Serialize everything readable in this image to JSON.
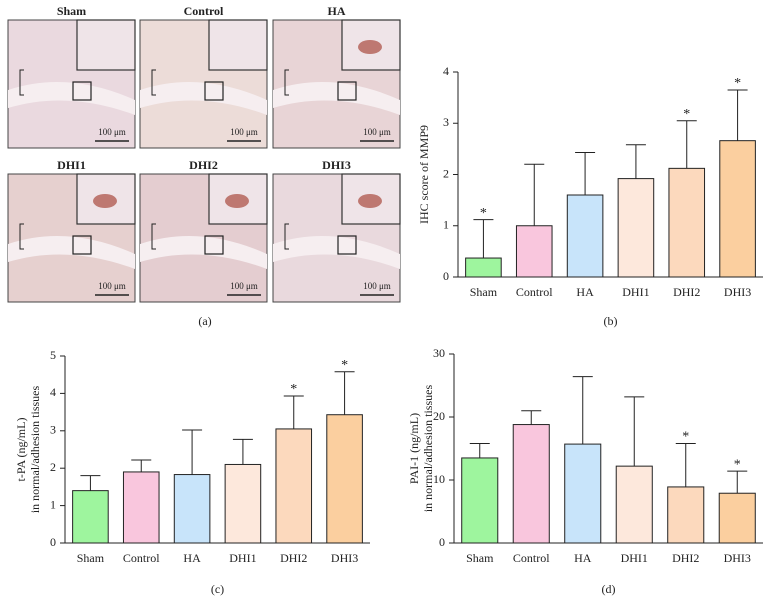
{
  "panel_a": {
    "labels": [
      "Sham",
      "Control",
      "HA",
      "DHI1",
      "DHI2",
      "DHI3"
    ],
    "scale_bar": "100 μm",
    "caption": "(a)"
  },
  "chart_data": [
    {
      "type": "bar",
      "caption": "(b)",
      "ylabel": [
        "IHC score of MMP9"
      ],
      "categories": [
        "Sham",
        "Control",
        "HA",
        "DHI1",
        "DHI2",
        "DHI3"
      ],
      "values": [
        0.37,
        1.0,
        1.6,
        1.92,
        2.12,
        2.66
      ],
      "errors": [
        0.75,
        1.2,
        0.83,
        0.66,
        0.93,
        0.99
      ],
      "markers": [
        "*",
        null,
        null,
        null,
        "*",
        "*"
      ],
      "colors": [
        "#9ef59e",
        "#f9c6dd",
        "#c8e4fa",
        "#fde8dc",
        "#fcd9bd",
        "#fbcf9f"
      ],
      "ylim": [
        0,
        4
      ],
      "yticks": [
        0,
        1,
        2,
        3,
        4
      ]
    },
    {
      "type": "bar",
      "caption": "(c)",
      "ylabel": [
        "t-PA (ng/mL)",
        "in normal/adhesion tissues"
      ],
      "categories": [
        "Sham",
        "Control",
        "HA",
        "DHI1",
        "DHI2",
        "DHI3"
      ],
      "values": [
        1.4,
        1.9,
        1.83,
        2.1,
        3.05,
        3.43
      ],
      "errors": [
        0.4,
        0.32,
        1.19,
        0.67,
        0.88,
        1.15
      ],
      "markers": [
        null,
        null,
        null,
        null,
        "*",
        "*"
      ],
      "colors": [
        "#9ef59e",
        "#f9c6dd",
        "#c8e4fa",
        "#fde8dc",
        "#fcd9bd",
        "#fbcf9f"
      ],
      "ylim": [
        0,
        5
      ],
      "yticks": [
        0,
        1,
        2,
        3,
        4,
        5
      ]
    },
    {
      "type": "bar",
      "caption": "(d)",
      "ylabel": [
        "PAI-1 (ng/mL)",
        "in normal/adhesion tissues"
      ],
      "categories": [
        "Sham",
        "Control",
        "HA",
        "DHI1",
        "DHI2",
        "DHI3"
      ],
      "values": [
        13.5,
        18.8,
        15.7,
        12.2,
        8.9,
        7.9
      ],
      "errors": [
        2.3,
        2.2,
        10.7,
        11.0,
        6.9,
        3.5
      ],
      "markers": [
        null,
        null,
        null,
        null,
        "*",
        "*"
      ],
      "colors": [
        "#9ef59e",
        "#f9c6dd",
        "#c8e4fa",
        "#fde8dc",
        "#fcd9bd",
        "#fbcf9f"
      ],
      "ylim": [
        0,
        30
      ],
      "yticks": [
        0,
        10,
        20,
        30
      ]
    }
  ]
}
